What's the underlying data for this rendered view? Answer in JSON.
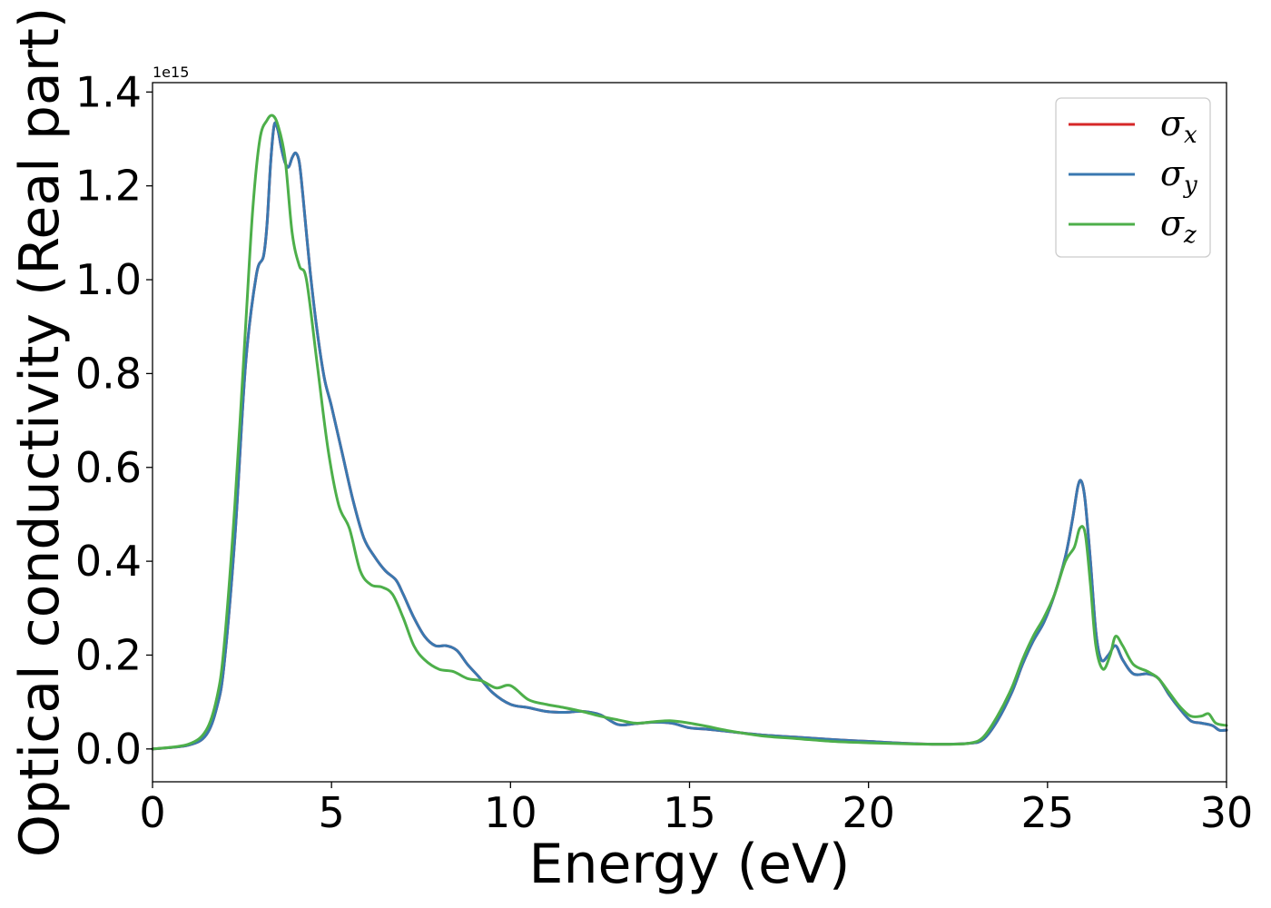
{
  "chart_data": {
    "type": "line",
    "title": "",
    "xlabel": "Energy (eV)",
    "ylabel": "Optical conductivity (Real part)",
    "y_offset_text": "1e15",
    "xlim": [
      0,
      30
    ],
    "ylim": [
      -0.07,
      1.42
    ],
    "x_ticks": [
      0,
      5,
      10,
      15,
      20,
      25,
      30
    ],
    "x_tick_labels": [
      "0",
      "5",
      "10",
      "15",
      "20",
      "25",
      "30"
    ],
    "y_ticks": [
      0.0,
      0.2,
      0.4,
      0.6,
      0.8,
      1.0,
      1.2,
      1.4
    ],
    "y_tick_labels": [
      "0.0",
      "0.2",
      "0.4",
      "0.6",
      "0.8",
      "1.0",
      "1.2",
      "1.4"
    ],
    "grid": false,
    "legend_position": "top-right",
    "series": [
      {
        "name": "σx",
        "symbol": "σ",
        "sub": "x",
        "color": "#d62728",
        "x": [
          0,
          1,
          1.5,
          1.8,
          2.0,
          2.3,
          2.6,
          2.9,
          3.1,
          3.2,
          3.3,
          3.4,
          3.5,
          3.6,
          3.7,
          3.8,
          3.9,
          4.0,
          4.1,
          4.2,
          4.4,
          4.6,
          4.8,
          5.0,
          5.3,
          5.6,
          5.9,
          6.2,
          6.5,
          6.8,
          7.0,
          7.3,
          7.6,
          7.9,
          8.2,
          8.5,
          8.8,
          9.1,
          9.5,
          10.0,
          10.5,
          11.0,
          11.5,
          12.0,
          12.5,
          13.0,
          13.5,
          14.0,
          14.5,
          15.0,
          15.5,
          16.0,
          17.0,
          18.0,
          19.0,
          20.0,
          21.0,
          22.0,
          22.8,
          23.2,
          23.6,
          24.0,
          24.3,
          24.6,
          24.9,
          25.2,
          25.5,
          25.7,
          25.85,
          25.95,
          26.05,
          26.2,
          26.35,
          26.5,
          26.7,
          26.9,
          27.1,
          27.4,
          27.8,
          28.1,
          28.4,
          28.7,
          29.0,
          29.3,
          29.6,
          29.8,
          30.0
        ],
        "y": [
          0.0,
          0.008,
          0.03,
          0.09,
          0.18,
          0.45,
          0.82,
          1.01,
          1.05,
          1.12,
          1.25,
          1.33,
          1.32,
          1.28,
          1.25,
          1.24,
          1.26,
          1.27,
          1.25,
          1.18,
          1.02,
          0.89,
          0.79,
          0.73,
          0.63,
          0.53,
          0.45,
          0.41,
          0.38,
          0.36,
          0.33,
          0.28,
          0.24,
          0.22,
          0.22,
          0.21,
          0.18,
          0.155,
          0.12,
          0.095,
          0.088,
          0.08,
          0.078,
          0.08,
          0.073,
          0.052,
          0.054,
          0.057,
          0.055,
          0.045,
          0.042,
          0.038,
          0.03,
          0.025,
          0.02,
          0.016,
          0.012,
          0.01,
          0.012,
          0.02,
          0.06,
          0.12,
          0.18,
          0.23,
          0.27,
          0.33,
          0.41,
          0.49,
          0.56,
          0.57,
          0.53,
          0.4,
          0.25,
          0.19,
          0.2,
          0.22,
          0.19,
          0.16,
          0.16,
          0.15,
          0.115,
          0.085,
          0.06,
          0.055,
          0.05,
          0.04,
          0.04
        ]
      },
      {
        "name": "σy",
        "symbol": "σ",
        "sub": "y",
        "color": "#3a78b0",
        "x": [
          0,
          1,
          1.5,
          1.8,
          2.0,
          2.3,
          2.6,
          2.9,
          3.1,
          3.2,
          3.3,
          3.4,
          3.5,
          3.6,
          3.7,
          3.8,
          3.9,
          4.0,
          4.1,
          4.2,
          4.4,
          4.6,
          4.8,
          5.0,
          5.3,
          5.6,
          5.9,
          6.2,
          6.5,
          6.8,
          7.0,
          7.3,
          7.6,
          7.9,
          8.2,
          8.5,
          8.8,
          9.1,
          9.5,
          10.0,
          10.5,
          11.0,
          11.5,
          12.0,
          12.5,
          13.0,
          13.5,
          14.0,
          14.5,
          15.0,
          15.5,
          16.0,
          17.0,
          18.0,
          19.0,
          20.0,
          21.0,
          22.0,
          22.8,
          23.2,
          23.6,
          24.0,
          24.3,
          24.6,
          24.9,
          25.2,
          25.5,
          25.7,
          25.85,
          25.95,
          26.05,
          26.2,
          26.35,
          26.5,
          26.7,
          26.9,
          27.1,
          27.4,
          27.8,
          28.1,
          28.4,
          28.7,
          29.0,
          29.3,
          29.6,
          29.8,
          30.0
        ],
        "y": [
          0.0,
          0.008,
          0.03,
          0.09,
          0.18,
          0.45,
          0.82,
          1.01,
          1.05,
          1.12,
          1.25,
          1.33,
          1.32,
          1.28,
          1.25,
          1.24,
          1.26,
          1.27,
          1.25,
          1.18,
          1.02,
          0.89,
          0.79,
          0.73,
          0.63,
          0.53,
          0.45,
          0.41,
          0.38,
          0.36,
          0.33,
          0.28,
          0.24,
          0.22,
          0.22,
          0.21,
          0.18,
          0.155,
          0.12,
          0.095,
          0.088,
          0.08,
          0.078,
          0.08,
          0.073,
          0.052,
          0.054,
          0.057,
          0.055,
          0.045,
          0.042,
          0.038,
          0.03,
          0.025,
          0.02,
          0.016,
          0.012,
          0.01,
          0.012,
          0.02,
          0.06,
          0.12,
          0.18,
          0.23,
          0.27,
          0.33,
          0.41,
          0.49,
          0.56,
          0.57,
          0.53,
          0.4,
          0.25,
          0.19,
          0.2,
          0.22,
          0.19,
          0.16,
          0.16,
          0.15,
          0.115,
          0.085,
          0.06,
          0.055,
          0.05,
          0.04,
          0.04
        ]
      },
      {
        "name": "σz",
        "symbol": "σ",
        "sub": "z",
        "color": "#4daf4a",
        "x": [
          0,
          1,
          1.5,
          1.8,
          2.0,
          2.3,
          2.6,
          2.8,
          3.0,
          3.2,
          3.35,
          3.5,
          3.7,
          3.9,
          4.1,
          4.3,
          4.6,
          4.9,
          5.2,
          5.5,
          5.8,
          6.1,
          6.4,
          6.7,
          7.0,
          7.3,
          7.6,
          8.0,
          8.4,
          8.8,
          9.2,
          9.6,
          10.0,
          10.5,
          11.0,
          11.5,
          12.0,
          12.5,
          13.0,
          13.5,
          14.0,
          14.5,
          15.0,
          15.5,
          16.0,
          17.0,
          18.0,
          19.0,
          20.0,
          21.0,
          22.0,
          22.8,
          23.2,
          23.6,
          24.0,
          24.3,
          24.6,
          24.9,
          25.2,
          25.5,
          25.75,
          25.9,
          26.05,
          26.2,
          26.35,
          26.55,
          26.75,
          26.9,
          27.1,
          27.4,
          27.8,
          28.1,
          28.4,
          28.7,
          29.0,
          29.3,
          29.5,
          29.7,
          30.0
        ],
        "y": [
          0.0,
          0.01,
          0.04,
          0.11,
          0.22,
          0.52,
          0.9,
          1.15,
          1.3,
          1.34,
          1.35,
          1.33,
          1.26,
          1.1,
          1.03,
          1.0,
          0.82,
          0.64,
          0.52,
          0.47,
          0.38,
          0.35,
          0.345,
          0.33,
          0.28,
          0.22,
          0.19,
          0.17,
          0.165,
          0.15,
          0.145,
          0.13,
          0.135,
          0.105,
          0.095,
          0.088,
          0.08,
          0.07,
          0.062,
          0.055,
          0.058,
          0.06,
          0.055,
          0.048,
          0.04,
          0.028,
          0.022,
          0.016,
          0.013,
          0.011,
          0.01,
          0.012,
          0.025,
          0.07,
          0.13,
          0.19,
          0.24,
          0.28,
          0.33,
          0.4,
          0.43,
          0.47,
          0.46,
          0.35,
          0.22,
          0.17,
          0.2,
          0.24,
          0.22,
          0.18,
          0.165,
          0.15,
          0.12,
          0.09,
          0.07,
          0.07,
          0.075,
          0.055,
          0.05
        ]
      }
    ]
  }
}
